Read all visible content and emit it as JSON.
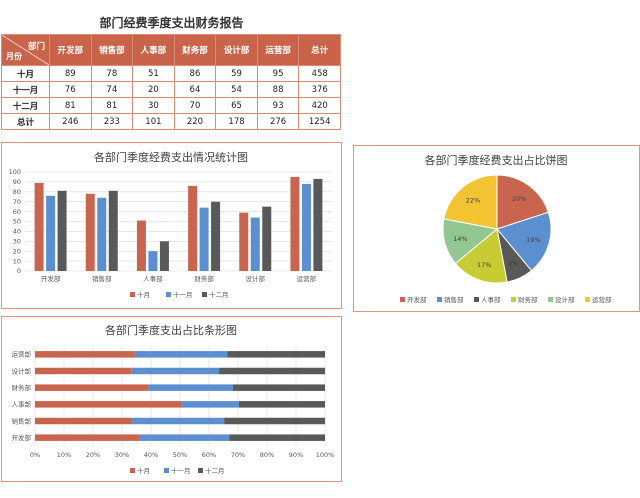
{
  "report": {
    "title": "部门经费季度支出财务报告",
    "corner_top": "部门",
    "corner_bottom": "月份",
    "columns": [
      "开发部",
      "销售部",
      "人事部",
      "财务部",
      "设计部",
      "运营部",
      "总计"
    ],
    "rows": [
      {
        "label": "十月",
        "values": [
          "89",
          "78",
          "51",
          "86",
          "59",
          "95",
          "458"
        ]
      },
      {
        "label": "十一月",
        "values": [
          "76",
          "74",
          "20",
          "64",
          "54",
          "88",
          "376"
        ]
      },
      {
        "label": "十二月",
        "values": [
          "81",
          "81",
          "30",
          "70",
          "65",
          "93",
          "420"
        ]
      },
      {
        "label": "总计",
        "values": [
          "246",
          "233",
          "101",
          "220",
          "178",
          "276",
          "1254"
        ]
      }
    ]
  },
  "colors": {
    "oct": "#c9654f",
    "nov": "#5b8fd0",
    "dec": "#595959",
    "accent": "#c96349"
  },
  "chart_data": [
    {
      "type": "bar",
      "title": "各部门季度经费支出情况统计图",
      "categories": [
        "开发部",
        "销售部",
        "人事部",
        "财务部",
        "设计部",
        "运营部"
      ],
      "series": [
        {
          "name": "十月",
          "values": [
            89,
            78,
            51,
            86,
            59,
            95
          ]
        },
        {
          "name": "十一月",
          "values": [
            76,
            74,
            20,
            64,
            54,
            88
          ]
        },
        {
          "name": "十二月",
          "values": [
            81,
            81,
            30,
            70,
            65,
            93
          ]
        }
      ],
      "ylim": [
        0,
        100
      ],
      "yticks": [
        0,
        10,
        20,
        30,
        40,
        50,
        60,
        70,
        80,
        90,
        100
      ],
      "grid": true,
      "legend": "bottom"
    },
    {
      "type": "pie",
      "title": "各部门季度经费支出占比饼图",
      "categories": [
        "开发部",
        "销售部",
        "人事部",
        "财务部",
        "设计部",
        "运营部"
      ],
      "values": [
        20,
        19,
        8,
        17,
        14,
        22
      ],
      "labels": [
        "20%",
        "19%",
        "8%",
        "17%",
        "14%",
        "22%"
      ],
      "colors": [
        "#c9654f",
        "#5b8fd0",
        "#595959",
        "#c7cc33",
        "#92c792",
        "#f2c431"
      ],
      "legend": "bottom"
    },
    {
      "type": "bar",
      "orientation": "horizontal-stacked-100",
      "title": "各部门季度支出占比条形图",
      "categories": [
        "开发部",
        "销售部",
        "人事部",
        "财务部",
        "设计部",
        "运营部"
      ],
      "series": [
        {
          "name": "十月",
          "values": [
            89,
            78,
            51,
            86,
            59,
            95
          ]
        },
        {
          "name": "十一月",
          "values": [
            76,
            74,
            20,
            64,
            54,
            88
          ]
        },
        {
          "name": "十二月",
          "values": [
            81,
            81,
            30,
            70,
            65,
            93
          ]
        }
      ],
      "xticks": [
        "0%",
        "10%",
        "20%",
        "30%",
        "40%",
        "50%",
        "60%",
        "70%",
        "80%",
        "90%",
        "100%"
      ],
      "legend": "bottom"
    }
  ]
}
